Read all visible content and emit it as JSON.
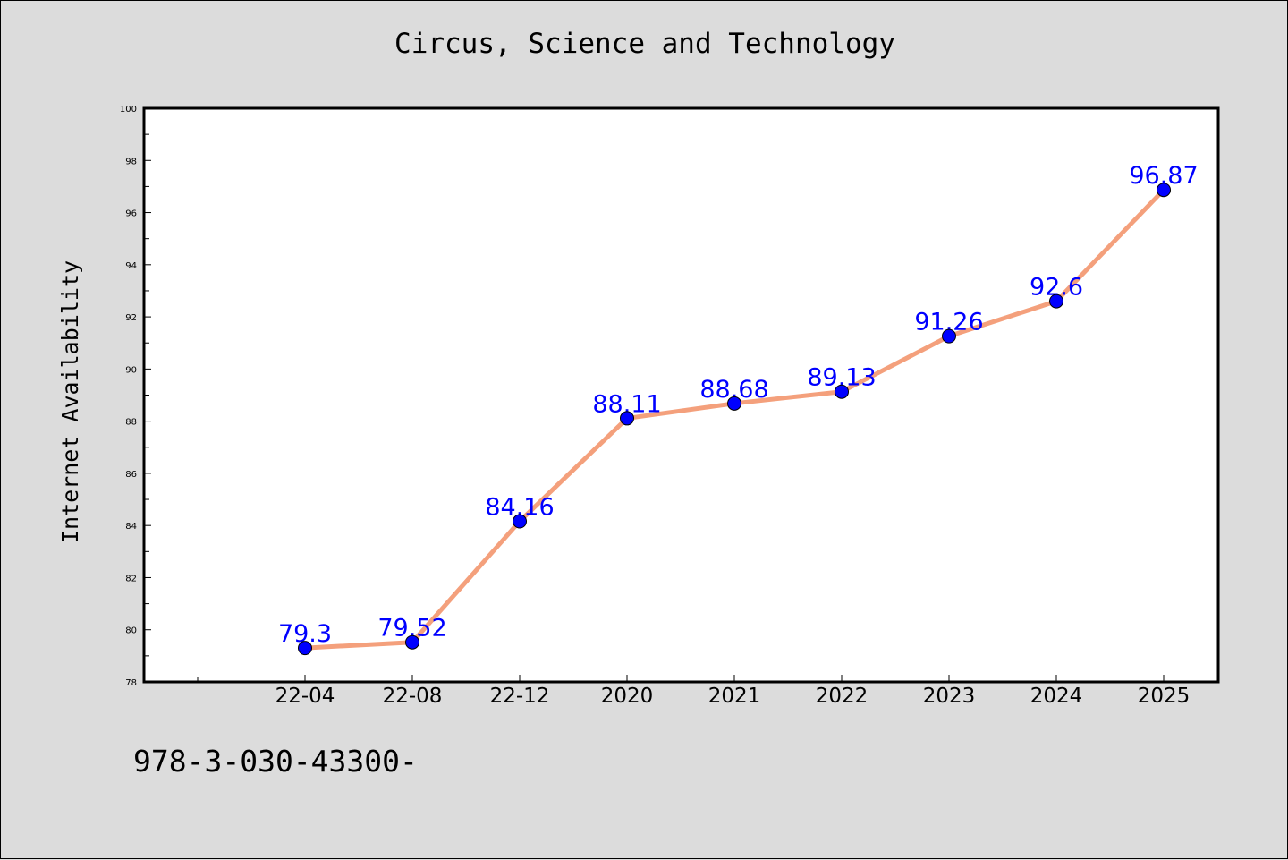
{
  "chart_data": {
    "type": "line",
    "title": "Circus, Science and Technology",
    "xlabel": "",
    "ylabel": "Internet Availability",
    "categories": [
      "22-04",
      "22-08",
      "22-12",
      "2020",
      "2021",
      "2022",
      "2023",
      "2024",
      "2025"
    ],
    "series": [
      {
        "values": [
          79.3,
          79.52,
          84.16,
          88.11,
          88.68,
          89.13,
          91.26,
          92.6,
          96.87
        ],
        "data_labels": [
          "79.3",
          "79.52",
          "84.16",
          "88.11",
          "88.68",
          "89.13",
          "91.26",
          "92.6",
          "96.87"
        ]
      }
    ],
    "ylim": [
      78,
      100
    ],
    "yticks": [
      "78",
      "80",
      "82",
      "84",
      "86",
      "88",
      "90",
      "92",
      "94",
      "96",
      "98",
      "100"
    ],
    "grid": false,
    "legend": "none"
  },
  "footer": {
    "text": "978-3-030-43300-"
  },
  "colors": {
    "line": "#f4a07c",
    "marker": "#0000ff",
    "data_label": "#0000ff",
    "plot_background": "#ffffff",
    "figure_background": "#dcdcdc"
  }
}
